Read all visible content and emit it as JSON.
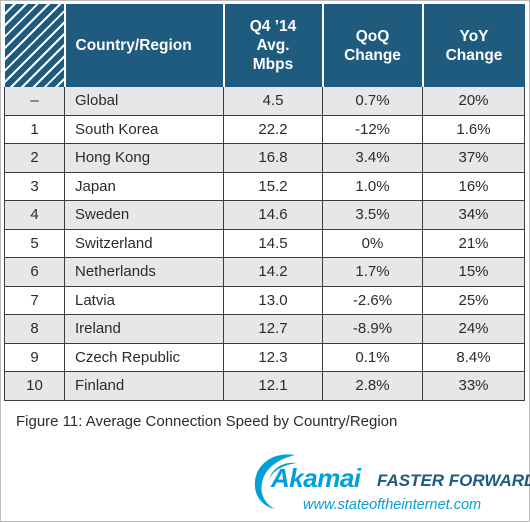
{
  "table": {
    "headers": {
      "rank": "",
      "country": "Country/Region",
      "speed": [
        "Q4 ’14",
        "Avg.",
        "Mbps"
      ],
      "qoq": [
        "QoQ",
        "Change"
      ],
      "yoy": [
        "YoY",
        "Change"
      ]
    },
    "rows": [
      {
        "rank": "–",
        "country": "Global",
        "speed": "4.5",
        "qoq": "0.7%",
        "yoy": "20%"
      },
      {
        "rank": "1",
        "country": "South Korea",
        "speed": "22.2",
        "qoq": "-12%",
        "yoy": "1.6%"
      },
      {
        "rank": "2",
        "country": "Hong Kong",
        "speed": "16.8",
        "qoq": "3.4%",
        "yoy": "37%"
      },
      {
        "rank": "3",
        "country": "Japan",
        "speed": "15.2",
        "qoq": "1.0%",
        "yoy": "16%"
      },
      {
        "rank": "4",
        "country": "Sweden",
        "speed": "14.6",
        "qoq": "3.5%",
        "yoy": "34%"
      },
      {
        "rank": "5",
        "country": "Switzerland",
        "speed": "14.5",
        "qoq": "0%",
        "yoy": "21%"
      },
      {
        "rank": "6",
        "country": "Netherlands",
        "speed": "14.2",
        "qoq": "1.7%",
        "yoy": "15%"
      },
      {
        "rank": "7",
        "country": "Latvia",
        "speed": "13.0",
        "qoq": "-2.6%",
        "yoy": "25%"
      },
      {
        "rank": "8",
        "country": "Ireland",
        "speed": "12.7",
        "qoq": "-8.9%",
        "yoy": "24%"
      },
      {
        "rank": "9",
        "country": "Czech Republic",
        "speed": "12.3",
        "qoq": "0.1%",
        "yoy": "8.4%"
      },
      {
        "rank": "10",
        "country": "Finland",
        "speed": "12.1",
        "qoq": "2.8%",
        "yoy": "33%"
      }
    ]
  },
  "caption": "Figure 11: Average Connection Speed by Country/Region",
  "logo": {
    "brand": "Akamai",
    "tagline": "FASTER FORWARD",
    "url": "www.stateoftheinternet.com",
    "icon": "akamai-swoosh-icon"
  },
  "colors": {
    "header_bg": "#1f5b7e",
    "alt_row_bg": "#e6e7e8",
    "brand_blue": "#00a0dc"
  }
}
